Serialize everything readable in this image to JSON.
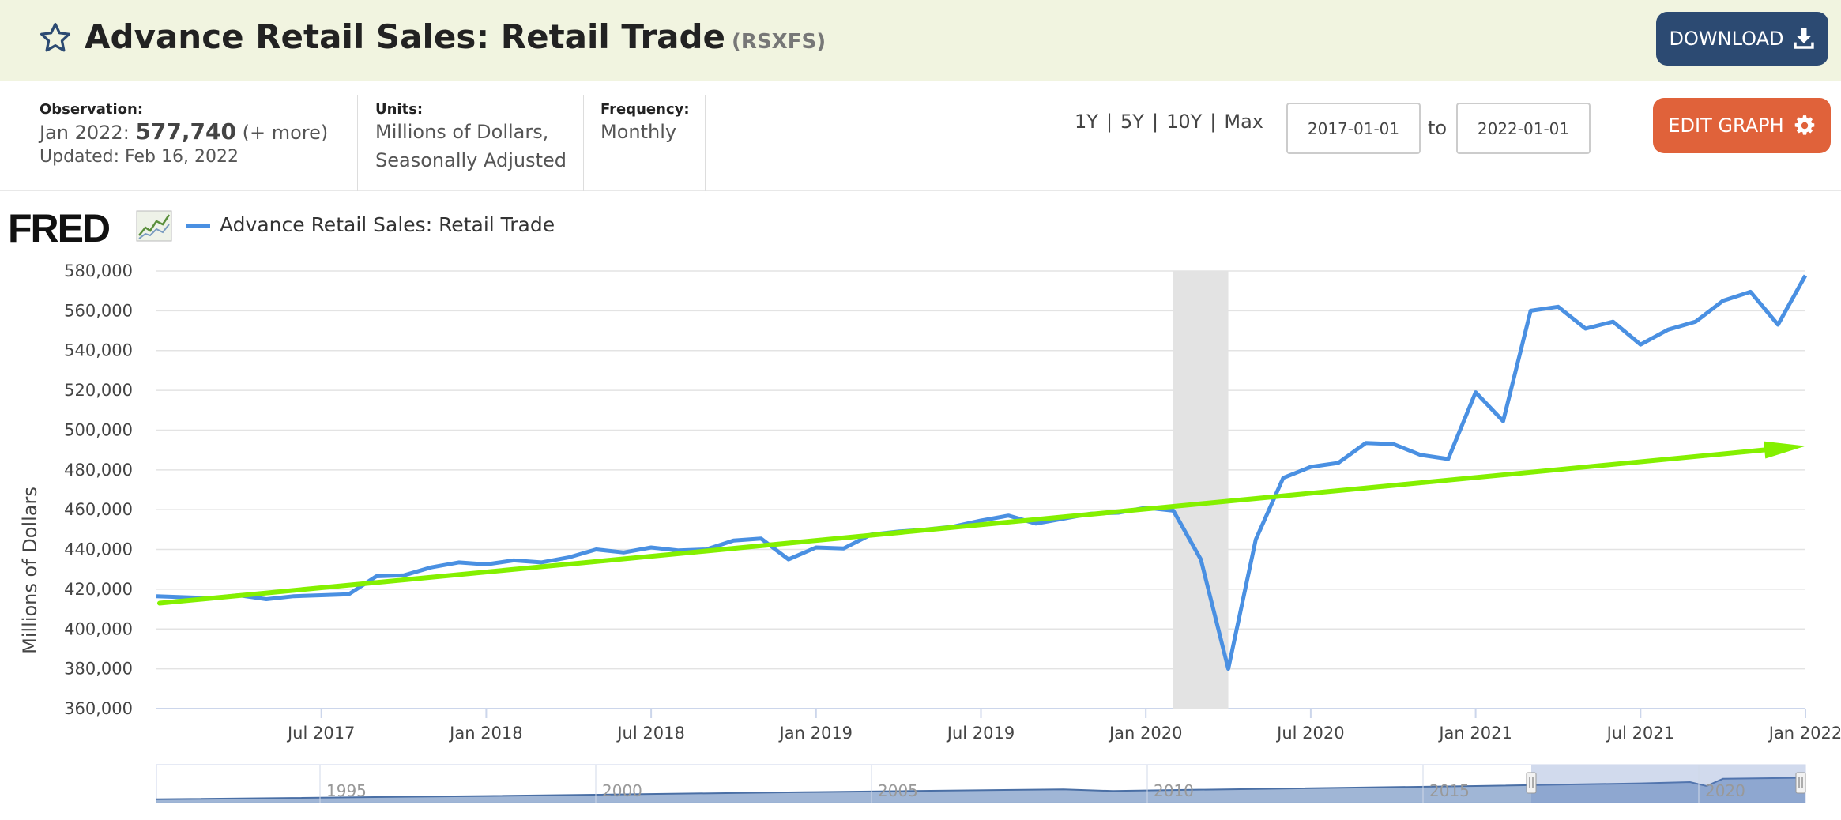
{
  "header": {
    "title": "Advance Retail Sales: Retail Trade",
    "series_id": "(RSXFS)",
    "download_label": "DOWNLOAD",
    "star_icon": "star-outline-icon",
    "download_icon": "download-icon"
  },
  "meta": {
    "observation_label": "Observation:",
    "observation_date": "Jan 2022:",
    "observation_value": "577,740",
    "observation_more": "(+ more)",
    "updated": "Updated: Feb 16, 2022",
    "units_label": "Units:",
    "units_line1": "Millions of Dollars,",
    "units_line2": "Seasonally Adjusted",
    "frequency_label": "Frequency:",
    "frequency_value": "Monthly"
  },
  "controls": {
    "range_1y": "1Y",
    "range_5y": "5Y",
    "range_10y": "10Y",
    "range_max": "Max",
    "separator": "|",
    "start_date": "2017-01-01",
    "to_label": "to",
    "end_date": "2022-01-01",
    "edit_graph_label": "EDIT GRAPH",
    "edit_icon": "gear-icon"
  },
  "chart_data": {
    "type": "line",
    "logo": "FRED",
    "legend": "Advance Retail Sales: Retail Trade",
    "ylabel": "Millions of Dollars",
    "ylim": [
      360000,
      580000
    ],
    "yticks": [
      "360,000",
      "380,000",
      "400,000",
      "420,000",
      "440,000",
      "460,000",
      "480,000",
      "500,000",
      "520,000",
      "540,000",
      "560,000",
      "580,000"
    ],
    "xlim": [
      "2017-01",
      "2022-01"
    ],
    "xticks": [
      {
        "label": "Jul 2017",
        "date": "2017-07"
      },
      {
        "label": "Jan 2018",
        "date": "2018-01"
      },
      {
        "label": "Jul 2018",
        "date": "2018-07"
      },
      {
        "label": "Jan 2019",
        "date": "2019-01"
      },
      {
        "label": "Jul 2019",
        "date": "2019-07"
      },
      {
        "label": "Jan 2020",
        "date": "2020-01"
      },
      {
        "label": "Jul 2020",
        "date": "2020-07"
      },
      {
        "label": "Jan 2021",
        "date": "2021-01"
      },
      {
        "label": "Jul 2021",
        "date": "2021-07"
      },
      {
        "label": "Jan 2022",
        "date": "2022-01"
      }
    ],
    "recession": {
      "start": "2020-02",
      "end": "2020-04"
    },
    "series": [
      {
        "name": "Advance Retail Sales: Retail Trade",
        "color": "#4a90e2",
        "start": "2017-01",
        "values": [
          416500,
          416000,
          415500,
          417000,
          415000,
          416500,
          417000,
          417500,
          426500,
          427000,
          431000,
          433500,
          432500,
          434500,
          433500,
          436000,
          440000,
          438500,
          441000,
          439500,
          440000,
          444500,
          445500,
          435000,
          441000,
          440500,
          447500,
          449000,
          450000,
          451500,
          454500,
          457000,
          453000,
          455500,
          458000,
          458500,
          461000,
          459500,
          435000,
          380000,
          445000,
          476000,
          481500,
          483500,
          493500,
          493000,
          487500,
          485500,
          519000,
          504500,
          560000,
          562000,
          551000,
          554500,
          543000,
          550500,
          554500,
          565000,
          569500,
          553000,
          577740
        ]
      }
    ],
    "trend_arrow": {
      "color": "#84f000",
      "from": {
        "date": "2017-01",
        "value": 413000
      },
      "to": {
        "date": "2022-01",
        "value": 492000
      }
    },
    "navigator": {
      "labels": [
        "1995",
        "2000",
        "2005",
        "2010",
        "2015",
        "2020"
      ]
    }
  }
}
